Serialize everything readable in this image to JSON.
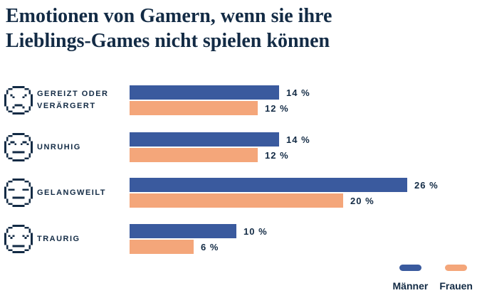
{
  "title": {
    "line1": "Emotionen von Gamern, wenn sie ihre",
    "line2": "Lieblings-Games nicht spielen können"
  },
  "colors": {
    "navy": "#132B45",
    "maenner_blue": "#3A5A9E",
    "frauen_orange": "#F4A67A",
    "background": "#FFFFFF"
  },
  "rows": [
    {
      "icon": "angry-face-icon",
      "label_line1": "GEREIZT ODER",
      "label_line2": "VERÄRGERT",
      "maenner_pct": 14,
      "maenner_label": "14 %",
      "frauen_pct": 12,
      "frauen_label": "12 %"
    },
    {
      "icon": "uneasy-face-icon",
      "label_line1": "UNRUHIG",
      "label_line2": "",
      "maenner_pct": 14,
      "maenner_label": "14 %",
      "frauen_pct": 12,
      "frauen_label": "12 %"
    },
    {
      "icon": "bored-face-icon",
      "label_line1": "GELANGWEILT",
      "label_line2": "",
      "maenner_pct": 26,
      "maenner_label": "26 %",
      "frauen_pct": 20,
      "frauen_label": "20 %"
    },
    {
      "icon": "sad-face-icon",
      "label_line1": "TRAURIG",
      "label_line2": "",
      "maenner_pct": 10,
      "maenner_label": "10 %",
      "frauen_pct": 6,
      "frauen_label": "6 %"
    }
  ],
  "legend": {
    "maenner": "Männer",
    "frauen": "Frauen"
  },
  "chart_data": {
    "type": "bar",
    "orientation": "horizontal",
    "title": "Emotionen von Gamern, wenn sie ihre Lieblings-Games nicht spielen können",
    "categories": [
      "Gereizt oder verärgert",
      "Unruhig",
      "Gelangweilt",
      "Traurig"
    ],
    "series": [
      {
        "name": "Männer",
        "color": "#3A5A9E",
        "values": [
          14,
          14,
          26,
          10
        ]
      },
      {
        "name": "Frauen",
        "color": "#F4A67A",
        "values": [
          12,
          12,
          20,
          6
        ]
      }
    ],
    "unit": "%",
    "value_labels": true,
    "legend_position": "bottom-right",
    "grid": false,
    "xlim": [
      0,
      30
    ]
  }
}
